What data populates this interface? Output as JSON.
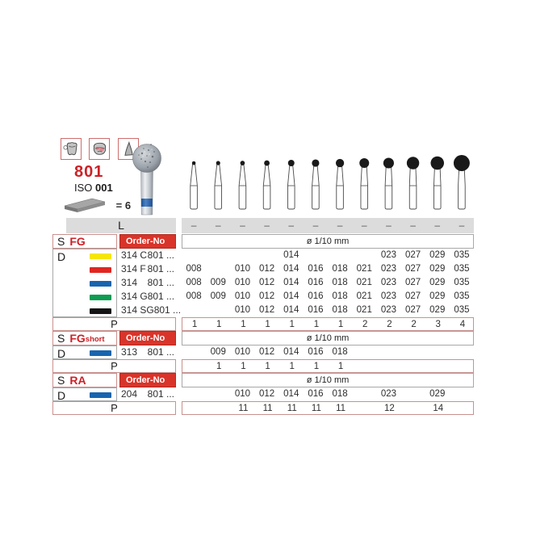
{
  "header": {
    "figure_number": "801",
    "iso_label": "ISO",
    "iso_value": "001",
    "pack_qty": "= 6",
    "icons": [
      "crown-prep-icon",
      "occlusal-surface-icon",
      "cusp-shape-icon"
    ]
  },
  "colors": {
    "accent_red": "#cc2127",
    "order_no_bg": "#d9342a",
    "bar_gray": "#dcdcdc",
    "band_blue": "#2a66b2",
    "chip_yellow": "#f6e50a",
    "chip_red": "#e02722",
    "chip_blue": "#1865af",
    "chip_green": "#0c9c50",
    "chip_black": "#141414"
  },
  "size_columns": [
    "008",
    "009",
    "010",
    "012",
    "014",
    "016",
    "018",
    "021",
    "023",
    "027",
    "029",
    "035"
  ],
  "l_row": {
    "label": "L",
    "dash": "–"
  },
  "labels": {
    "s": "S",
    "d": "D",
    "p": "P",
    "order_no": "Order-No",
    "diameter": "ø 1/10 mm"
  },
  "sections": [
    {
      "shank": "FG",
      "shank_suffix": "",
      "rows": [
        {
          "chip": "#f6e50a",
          "code": "314 C",
          "order_prefix": "801 ...",
          "sizes": [
            "",
            "",
            "",
            "",
            "014",
            "",
            "",
            "",
            "023",
            "027",
            "029",
            "035"
          ]
        },
        {
          "chip": "#e02722",
          "code": "314 F",
          "order_prefix": "801 ...",
          "sizes": [
            "008",
            "",
            "010",
            "012",
            "014",
            "016",
            "018",
            "021",
            "023",
            "027",
            "029",
            "035"
          ]
        },
        {
          "chip": "#1865af",
          "code": "314",
          "order_prefix": "801 ...",
          "sizes": [
            "008",
            "009",
            "010",
            "012",
            "014",
            "016",
            "018",
            "021",
            "023",
            "027",
            "029",
            "035"
          ]
        },
        {
          "chip": "#0c9c50",
          "code": "314 G",
          "order_prefix": "801 ...",
          "sizes": [
            "008",
            "009",
            "010",
            "012",
            "014",
            "016",
            "018",
            "021",
            "023",
            "027",
            "029",
            "035"
          ]
        },
        {
          "chip": "#141414",
          "code": "314 SG",
          "order_prefix": "801 ...",
          "sizes": [
            "",
            "",
            "010",
            "012",
            "014",
            "016",
            "018",
            "021",
            "023",
            "027",
            "029",
            "035"
          ]
        }
      ],
      "p_values": [
        "1",
        "1",
        "1",
        "1",
        "1",
        "1",
        "1",
        "2",
        "2",
        "2",
        "3",
        "4"
      ]
    },
    {
      "shank": "FG",
      "shank_suffix": "short",
      "rows": [
        {
          "chip": "#1865af",
          "code": "313",
          "order_prefix": "801 ...",
          "sizes": [
            "",
            "009",
            "010",
            "012",
            "014",
            "016",
            "018",
            "",
            "",
            "",
            "",
            ""
          ]
        }
      ],
      "p_values": [
        "",
        "1",
        "1",
        "1",
        "1",
        "1",
        "1",
        "",
        "",
        "",
        "",
        ""
      ]
    },
    {
      "shank": "RA",
      "shank_suffix": "",
      "rows": [
        {
          "chip": "#1865af",
          "code": "204",
          "order_prefix": "801 ...",
          "sizes": [
            "",
            "",
            "010",
            "012",
            "014",
            "016",
            "018",
            "",
            "023",
            "",
            "029",
            ""
          ]
        }
      ],
      "p_values": [
        "",
        "",
        "11",
        "11",
        "11",
        "11",
        "11",
        "",
        "12",
        "",
        "14",
        ""
      ]
    }
  ]
}
